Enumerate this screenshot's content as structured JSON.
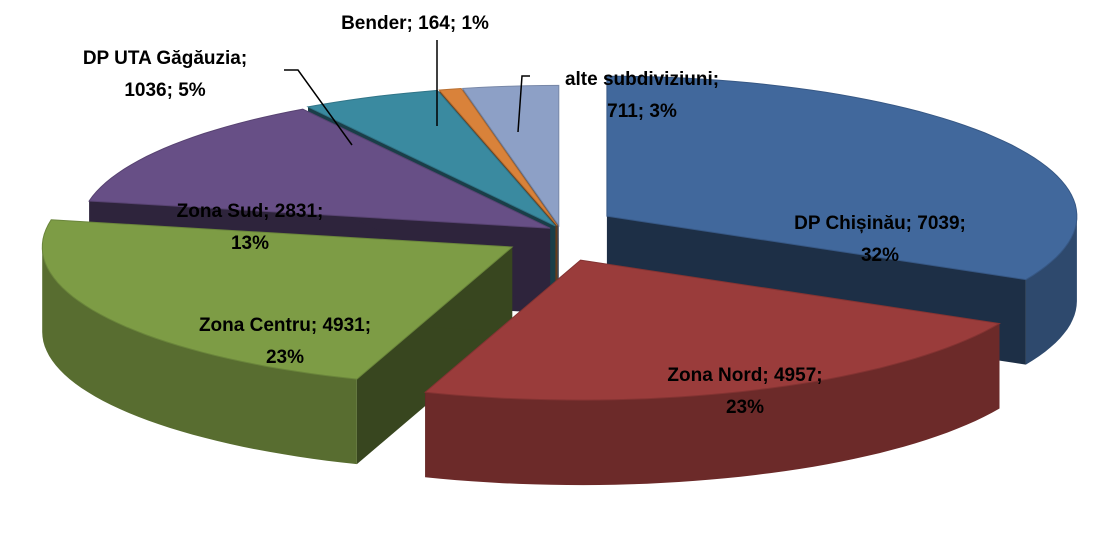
{
  "chart_data": {
    "type": "pie3d",
    "values": [
      7039,
      4957,
      4931,
      2831,
      1036,
      164,
      711
    ],
    "value_labels": [
      [
        "DP Chișinău; 7039;",
        "32%"
      ],
      [
        "Zona Nord; 4957;",
        "23%"
      ],
      [
        "Zona Centru; 4931;",
        "23%"
      ],
      [
        "Zona Sud; 2831;",
        "13%"
      ],
      [
        "DP UTA Găgăuzia;",
        "1036; 5%"
      ],
      [
        "Bender; 164; 1%"
      ],
      [
        "alte subdiviziuni;",
        "711; 3%"
      ]
    ],
    "colors": [
      "#41689c",
      "#9a3c3b",
      "#7d9c45",
      "#674f86",
      "#3a8aa0",
      "#d9823a",
      "#8da0c6"
    ]
  }
}
